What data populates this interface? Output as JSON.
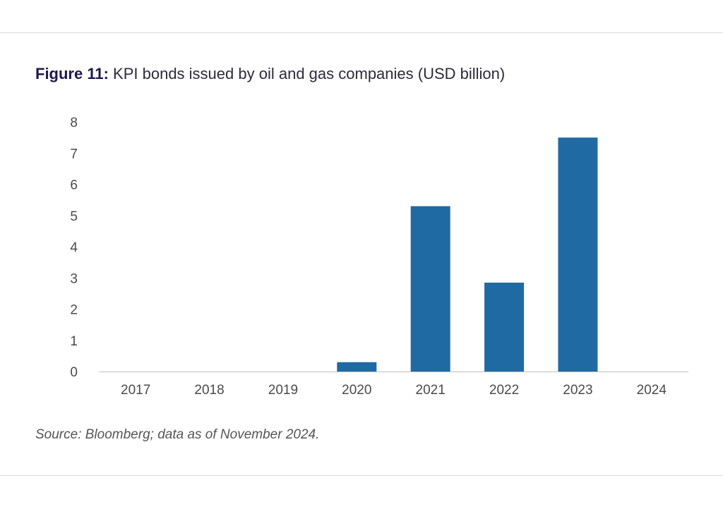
{
  "figure": {
    "label": "Figure 11:",
    "title": "KPI bonds issued by oil and gas companies (USD billion)"
  },
  "source_note": "Source: Bloomberg; data as of November 2024.",
  "colors": {
    "bar": "#1f6aa3",
    "axis": "#bfbfbf",
    "text": "#4a4a4a"
  },
  "chart_data": {
    "type": "bar",
    "title": "KPI bonds issued by oil and gas companies (USD billion)",
    "xlabel": "",
    "ylabel": "",
    "categories": [
      "2017",
      "2018",
      "2019",
      "2020",
      "2021",
      "2022",
      "2023",
      "2024"
    ],
    "values": [
      0,
      0,
      0,
      0.3,
      5.3,
      2.85,
      7.5,
      0
    ],
    "ylim": [
      0,
      8
    ],
    "yticks": [
      0,
      1,
      2,
      3,
      4,
      5,
      6,
      7,
      8
    ],
    "grid": false,
    "legend": "none"
  }
}
